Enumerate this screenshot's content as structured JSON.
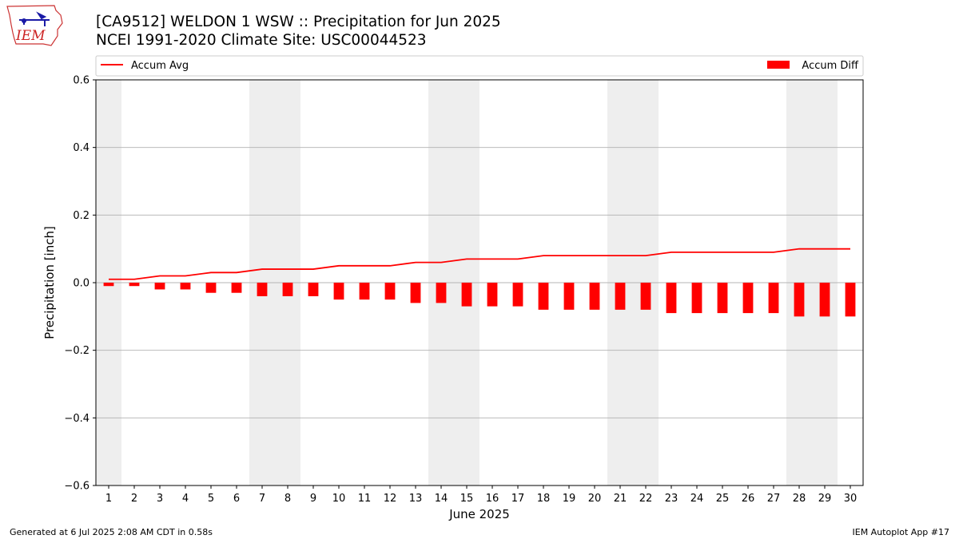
{
  "header": {
    "logo_text": "IEM",
    "title_line1": "[CA9512] WELDON 1 WSW :: Precipitation for Jun 2025",
    "title_line2": "NCEI 1991-2020 Climate Site: USC00044523"
  },
  "footer": {
    "left": "Generated at 6 Jul 2025 2:08 AM CDT in 0.58s",
    "right": "IEM Autoplot App #17"
  },
  "colors": {
    "bar": "#ff0000",
    "line": "#ff0000",
    "weekend_shade": "#eeeeee",
    "grid": "#b0b0b0"
  },
  "chart_data": {
    "type": "bar",
    "xlabel": "June 2025",
    "ylabel": "Precipitation [inch]",
    "ylim": [
      -0.6,
      0.6
    ],
    "yticks": [
      -0.6,
      -0.4,
      -0.2,
      0.0,
      0.2,
      0.4,
      0.6
    ],
    "ytick_labels": [
      "−0.6",
      "−0.4",
      "−0.2",
      "0.0",
      "0.2",
      "0.4",
      "0.6"
    ],
    "grid": "horizontal",
    "legend_placement": "top, above plot",
    "categories": [
      "1",
      "2",
      "3",
      "4",
      "5",
      "6",
      "7",
      "8",
      "9",
      "10",
      "11",
      "12",
      "13",
      "14",
      "15",
      "16",
      "17",
      "18",
      "19",
      "20",
      "21",
      "22",
      "23",
      "24",
      "25",
      "26",
      "27",
      "28",
      "29",
      "30"
    ],
    "shaded_days": [
      1,
      7,
      8,
      14,
      15,
      21,
      22,
      28,
      29
    ],
    "series": [
      {
        "name": "Accum Avg",
        "kind": "line",
        "values": [
          0.01,
          0.01,
          0.02,
          0.02,
          0.03,
          0.03,
          0.04,
          0.04,
          0.04,
          0.05,
          0.05,
          0.05,
          0.06,
          0.06,
          0.07,
          0.07,
          0.07,
          0.08,
          0.08,
          0.08,
          0.08,
          0.08,
          0.09,
          0.09,
          0.09,
          0.09,
          0.09,
          0.1,
          0.1,
          0.1
        ]
      },
      {
        "name": "Accum Diff",
        "kind": "bar",
        "values": [
          -0.01,
          -0.01,
          -0.02,
          -0.02,
          -0.03,
          -0.03,
          -0.04,
          -0.04,
          -0.04,
          -0.05,
          -0.05,
          -0.05,
          -0.06,
          -0.06,
          -0.07,
          -0.07,
          -0.07,
          -0.08,
          -0.08,
          -0.08,
          -0.08,
          -0.08,
          -0.09,
          -0.09,
          -0.09,
          -0.09,
          -0.09,
          -0.1,
          -0.1,
          -0.1
        ]
      }
    ]
  }
}
